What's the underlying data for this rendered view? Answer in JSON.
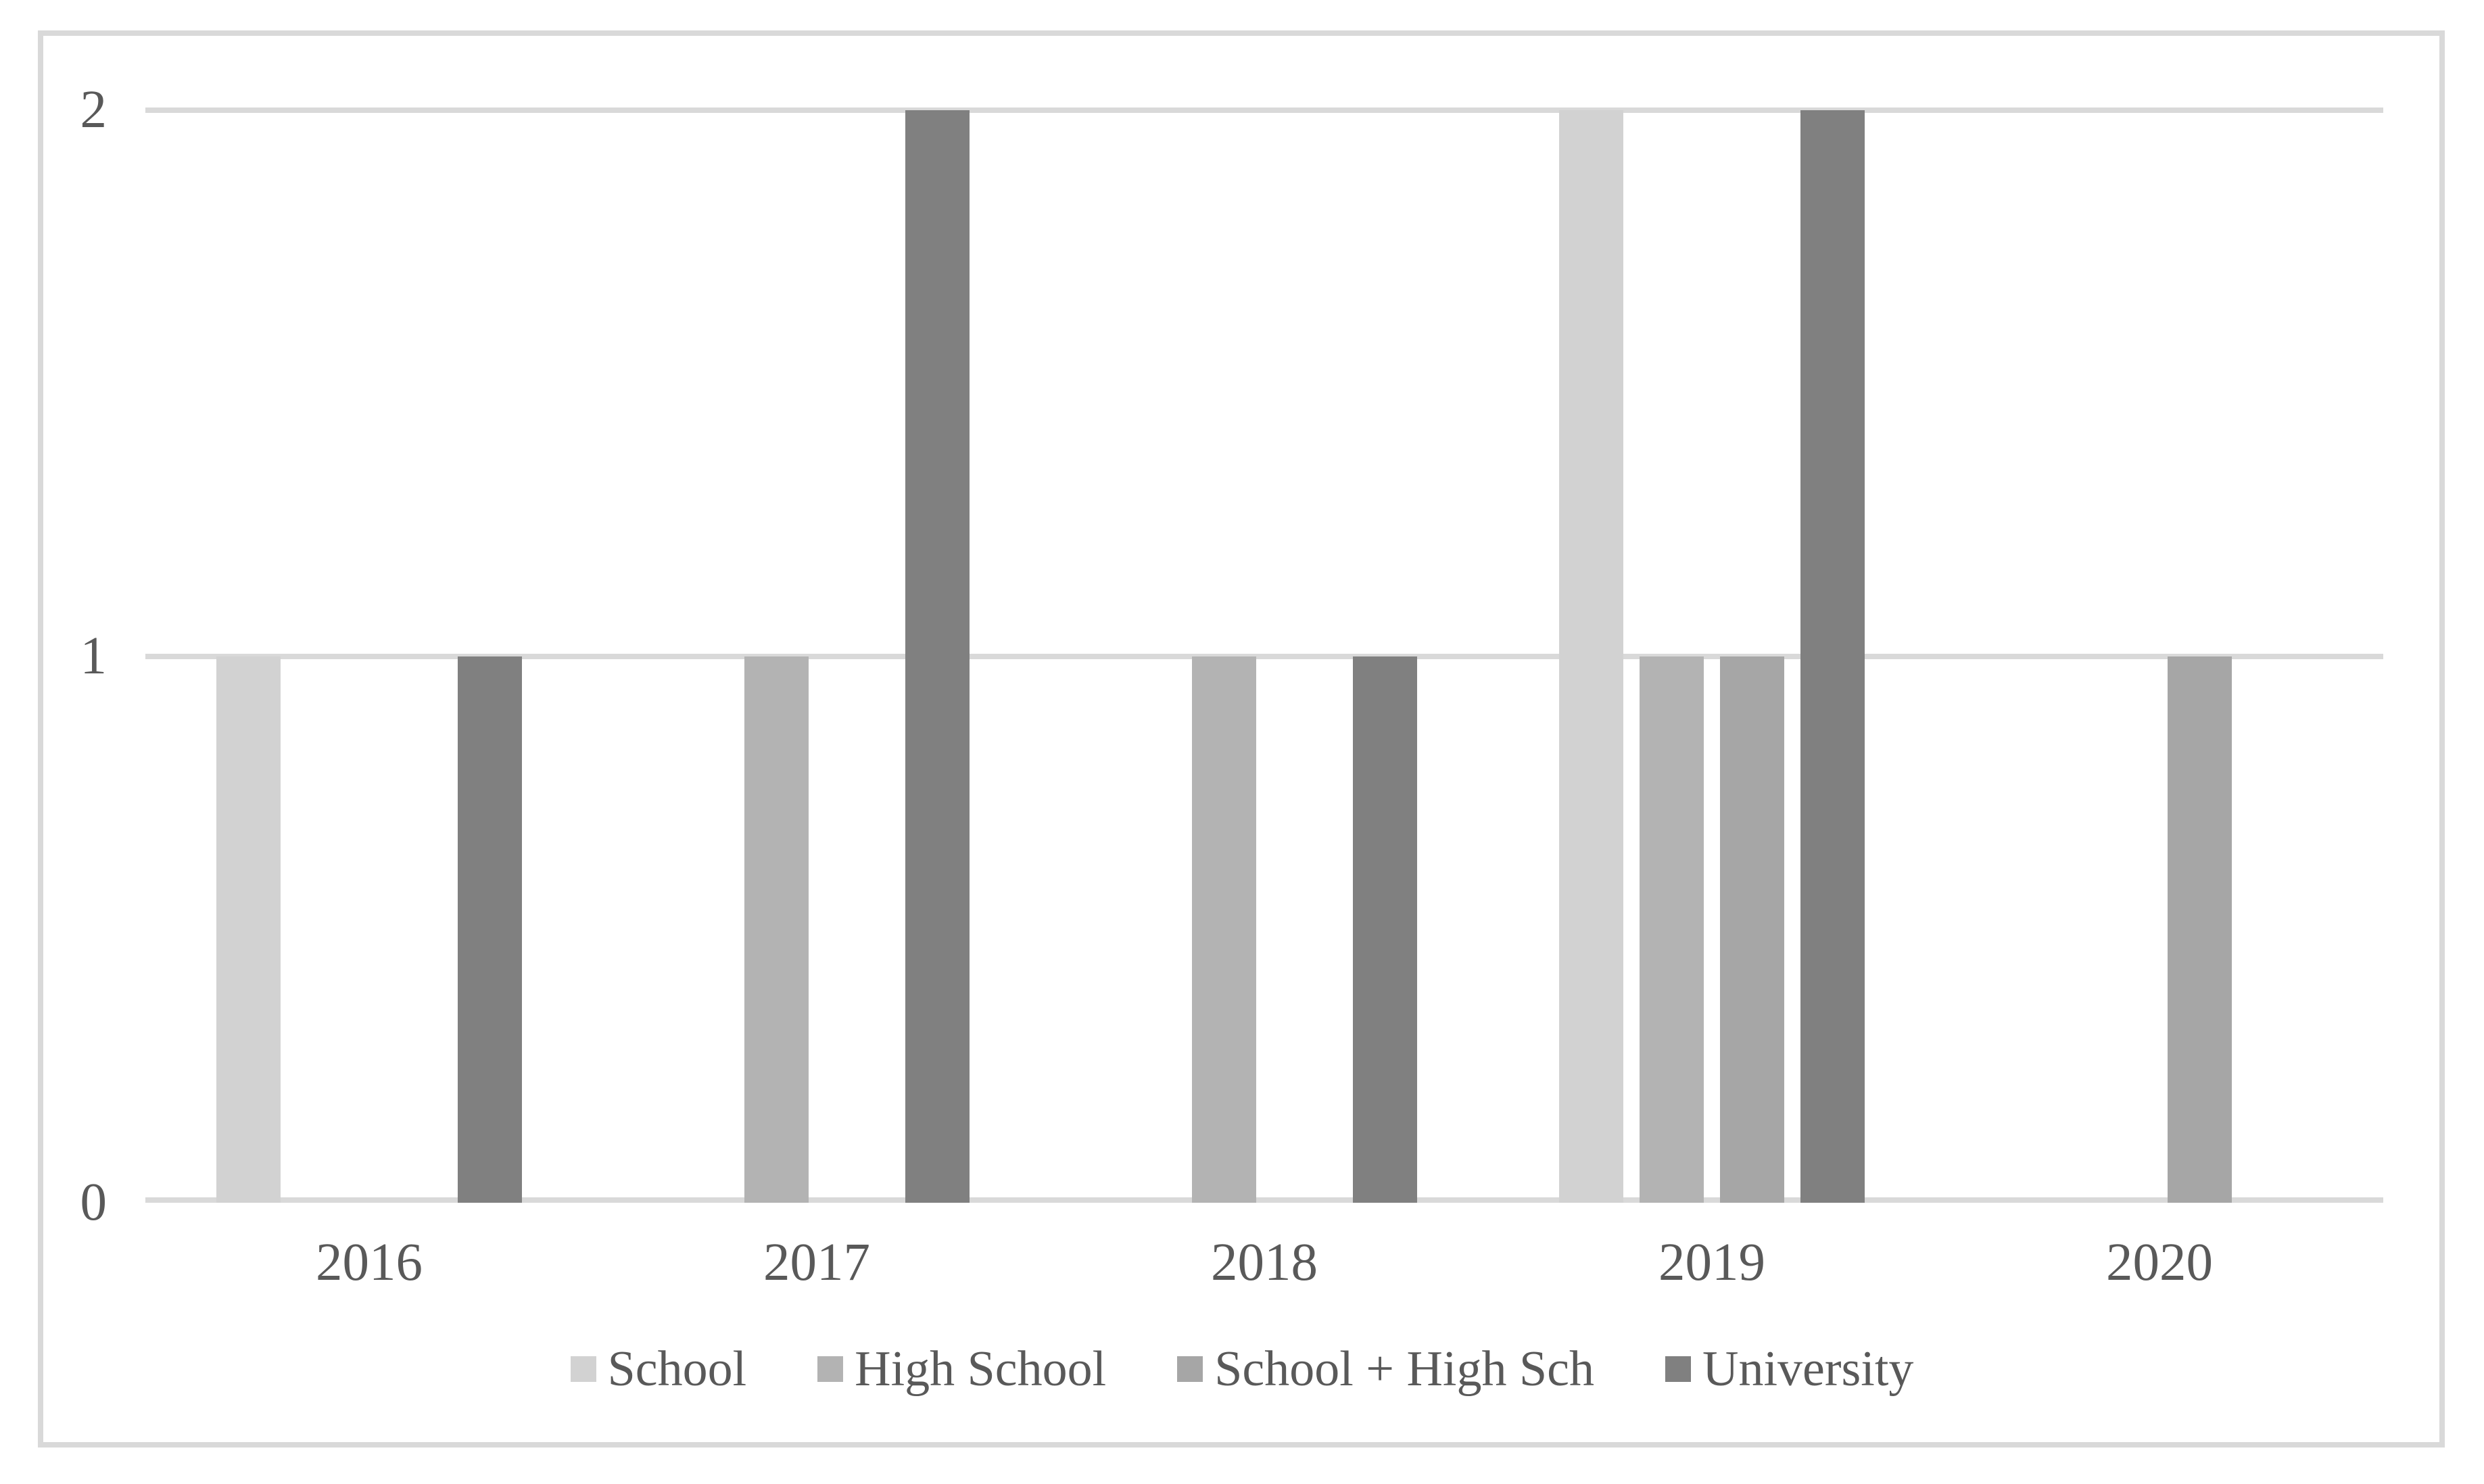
{
  "chart_data": {
    "type": "bar",
    "title": "",
    "xlabel": "",
    "ylabel": "",
    "categories": [
      "2016",
      "2017",
      "2018",
      "2019",
      "2020"
    ],
    "series": [
      {
        "name": "School",
        "color": "#d2d2d2",
        "values": [
          1,
          0,
          0,
          2,
          0
        ]
      },
      {
        "name": "High School",
        "color": "#b3b3b3",
        "values": [
          0,
          1,
          1,
          1,
          0
        ]
      },
      {
        "name": "School + High Sch",
        "color": "#a6a6a6",
        "values": [
          0,
          0,
          0,
          1,
          1
        ]
      },
      {
        "name": "University",
        "color": "#808080",
        "values": [
          1,
          2,
          1,
          2,
          0
        ]
      }
    ],
    "y_axis": {
      "ticks": [
        0,
        1,
        2
      ],
      "min": 0,
      "max": 2
    },
    "grid": true,
    "legend_position": "bottom",
    "colors": {
      "gridline": "#d9d9d9",
      "axis_line": "#d9d9d9",
      "frame_border": "#d9d9d9",
      "text": "#595959",
      "background": "#ffffff"
    }
  }
}
